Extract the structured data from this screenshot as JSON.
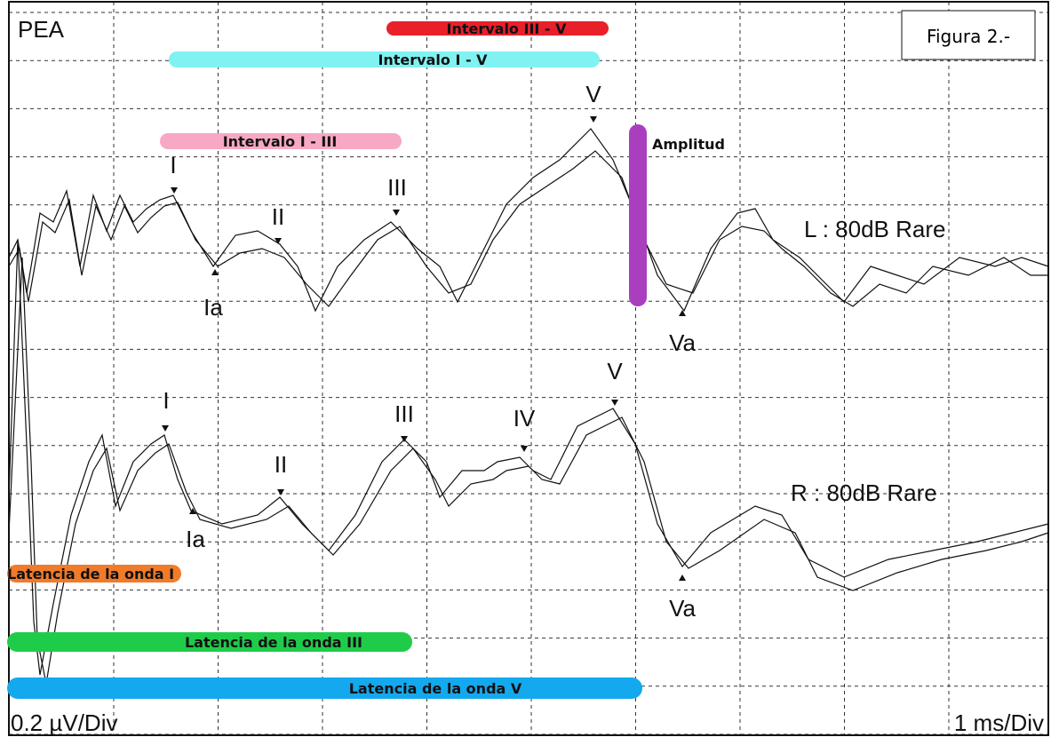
{
  "title": "PEA",
  "figure_label": "Figura 2.-",
  "scale_left": "0.2 µV/Div",
  "scale_right": "1 ms/Div",
  "traces": [
    {
      "label": "L : 80dB Rare"
    },
    {
      "label": "R : 80dB Rare"
    }
  ],
  "top_waves": [
    "I",
    "II",
    "III",
    "V",
    "Ia",
    "Va"
  ],
  "bottom_waves": [
    "I",
    "II",
    "III",
    "IV",
    "V",
    "Ia",
    "Va"
  ],
  "annotations": {
    "interval_3_5": "Intervalo III - V",
    "interval_1_5": "Intervalo I - V",
    "interval_1_3": "Intervalo I - III",
    "amplitude": "Amplitud",
    "latency_1": "Latencia de la onda I",
    "latency_3": "Latencia de la onda III",
    "latency_5": "Latencia de la onda V"
  }
}
